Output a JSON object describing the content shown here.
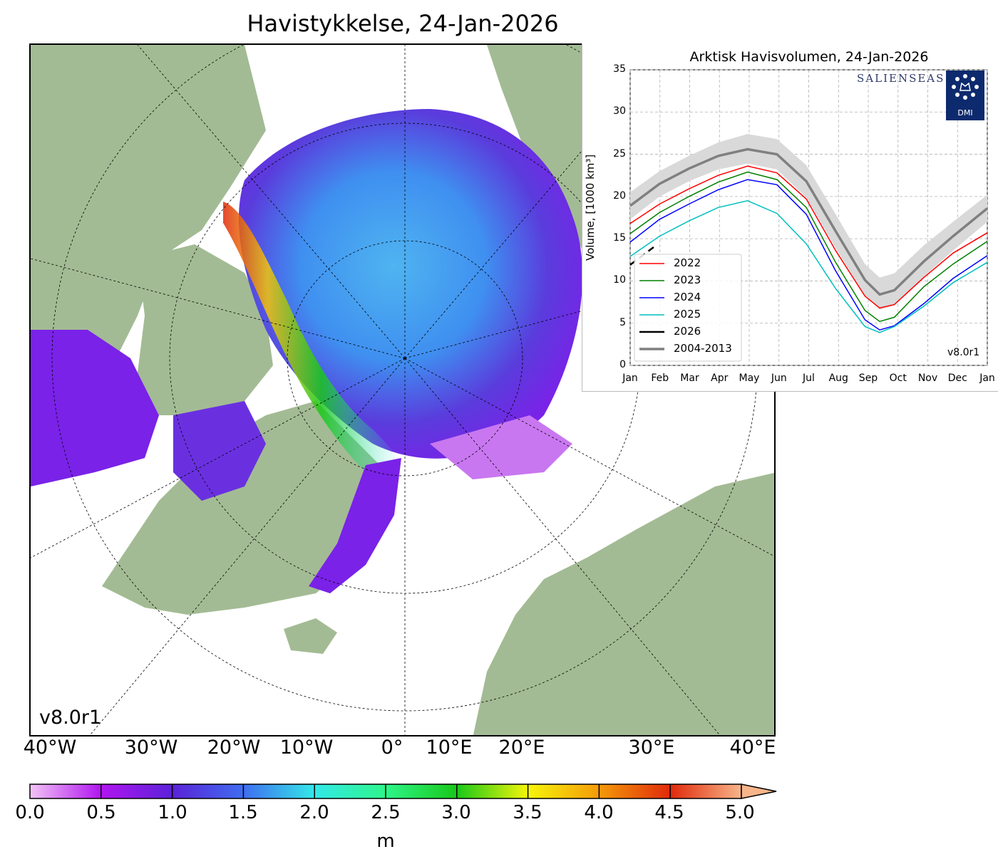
{
  "map": {
    "title": "Havistykkelse, 24-Jan-2026",
    "version": "v8.0r1",
    "lon_labels": [
      "40°W",
      "30°W",
      "20°W",
      "10°W",
      "0°",
      "10°E",
      "20°E",
      "30°E",
      "40°E"
    ],
    "colors": {
      "land": "#a3bb94",
      "ocean": "#ffffff",
      "rivers": "#8fb0e6"
    }
  },
  "colorbar": {
    "ticks": [
      "0.0",
      "0.5",
      "1.0",
      "1.5",
      "2.0",
      "2.5",
      "3.0",
      "3.5",
      "4.0",
      "4.5",
      "5.0"
    ],
    "unit": "m",
    "min": 0,
    "max": 5,
    "colors": [
      "#f2c4f5",
      "#b115f0",
      "#5a22d8",
      "#3f6df0",
      "#33e8e8",
      "#2df58a",
      "#18c818",
      "#f5f50a",
      "#f59a0a",
      "#e02a0a",
      "#d43c3c",
      "#f7b58a"
    ]
  },
  "chart_data": {
    "type": "line",
    "title": "Arktisk Havisvolumen, 24-Jan-2026",
    "ylabel": "Volume, [1000 km³]",
    "xlabel": "",
    "ylim": [
      0,
      35
    ],
    "yticks": [
      0,
      5,
      10,
      15,
      20,
      25,
      30,
      35
    ],
    "xticks": [
      "Jan",
      "Feb",
      "Mar",
      "Apr",
      "May",
      "Jun",
      "Jul",
      "Aug",
      "Sep",
      "Oct",
      "Nov",
      "Dec",
      "Jan"
    ],
    "grid": true,
    "legend_position": "bottom-left",
    "version": "v8.0r1",
    "logo_text": "SALIENSEAS",
    "logo_badge": "DMI",
    "x_day_points": [
      0,
      30,
      60,
      90,
      120,
      150,
      180,
      210,
      240,
      255,
      270,
      300,
      330,
      365
    ],
    "series": [
      {
        "name": "2022",
        "color": "#ff0000",
        "values": [
          16.8,
          19.1,
          20.9,
          22.5,
          23.6,
          22.8,
          19.7,
          13.6,
          8.2,
          6.8,
          7.2,
          10.4,
          13.3,
          15.7
        ]
      },
      {
        "name": "2023",
        "color": "#008000",
        "values": [
          15.6,
          18.1,
          20.0,
          21.7,
          22.9,
          22.0,
          18.7,
          12.2,
          6.5,
          5.2,
          5.7,
          9.3,
          12.0,
          14.7
        ]
      },
      {
        "name": "2024",
        "color": "#0000ff",
        "values": [
          14.6,
          17.3,
          19.1,
          20.8,
          22.0,
          21.4,
          17.9,
          11.2,
          5.4,
          4.2,
          4.7,
          7.3,
          10.3,
          13.0
        ]
      },
      {
        "name": "2025",
        "color": "#00bfbf",
        "values": [
          12.9,
          15.3,
          17.1,
          18.7,
          19.5,
          18.0,
          14.4,
          9.1,
          4.6,
          3.9,
          4.6,
          7.0,
          9.8,
          12.2
        ]
      },
      {
        "name": "2026",
        "color": "#000000",
        "values": [
          11.9,
          14.0
        ],
        "x": [
          0,
          24
        ]
      },
      {
        "name": "2004-2013",
        "color": "#808080",
        "values": [
          18.9,
          21.5,
          23.3,
          24.8,
          25.6,
          25.0,
          21.8,
          15.9,
          10.1,
          8.4,
          8.9,
          12.3,
          15.3,
          18.6
        ]
      }
    ],
    "band": {
      "color": "#d9d9d9",
      "upper": [
        20.5,
        23.0,
        24.8,
        26.4,
        27.4,
        26.8,
        23.7,
        17.9,
        12.0,
        10.4,
        10.9,
        14.2,
        17.0,
        20.2
      ],
      "lower": [
        17.3,
        20.0,
        21.8,
        23.2,
        23.9,
        23.2,
        19.9,
        13.9,
        8.3,
        6.6,
        7.1,
        10.5,
        13.6,
        17.0
      ]
    }
  }
}
